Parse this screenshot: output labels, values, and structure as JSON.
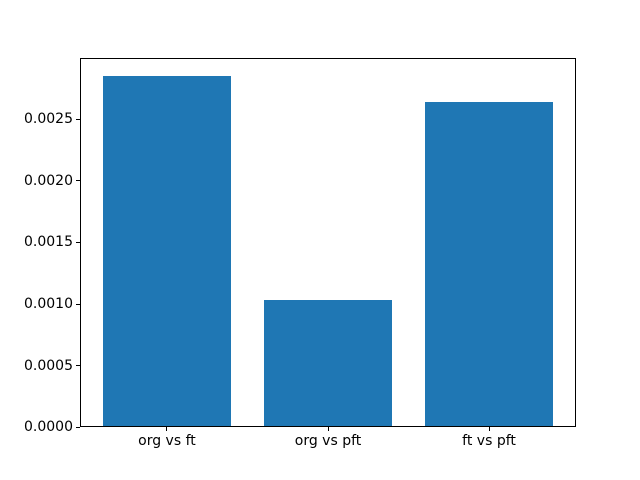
{
  "chart_data": {
    "type": "bar",
    "title": "",
    "xlabel": "",
    "ylabel": "",
    "categories": [
      "org vs ft",
      "org vs pft",
      "ft vs pft"
    ],
    "values": [
      0.00285,
      0.00103,
      0.00264
    ],
    "ylim": [
      0,
      0.003
    ],
    "ytick_values": [
      0.0,
      0.0005,
      0.001,
      0.0015,
      0.002,
      0.0025
    ],
    "ytick_labels": [
      "0.0000",
      "0.0005",
      "0.0010",
      "0.0015",
      "0.0020",
      "0.0025"
    ],
    "bar_color": "#1f77b4",
    "bar_width_fraction": 0.8,
    "x_margin_fraction": 0.05,
    "grid": false,
    "legend_position": "none",
    "background_color": "#ffffff",
    "spine_color": "#000000",
    "text_color": "#000000"
  }
}
